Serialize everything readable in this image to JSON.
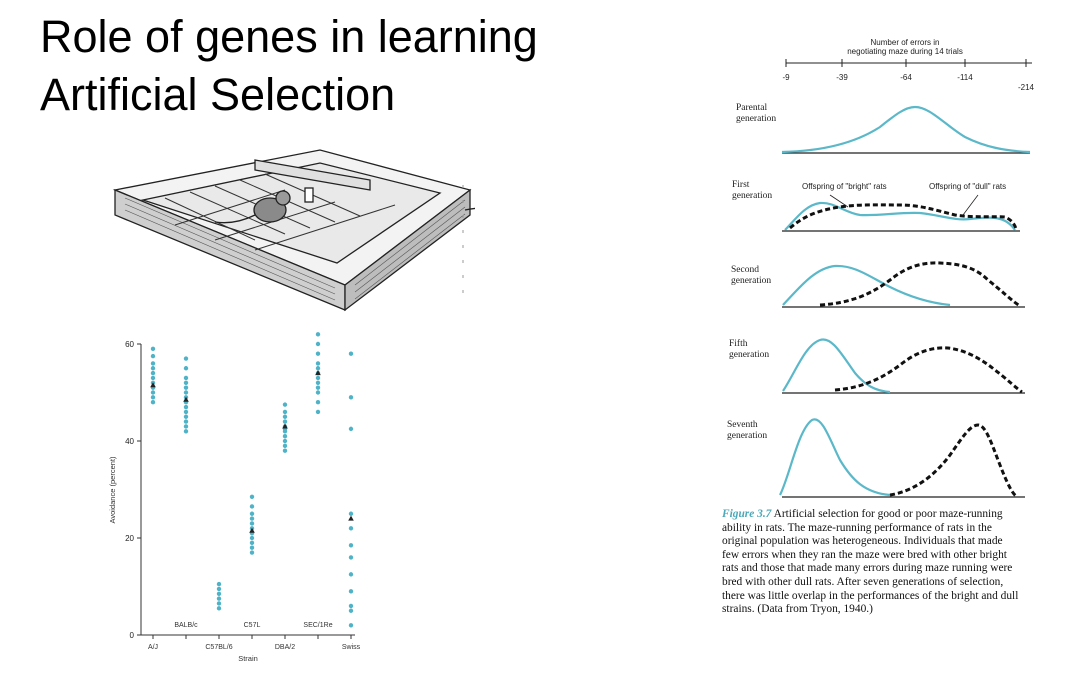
{
  "slide": {
    "title_line1": "Role of genes in learning",
    "title_line2": "Artificial Selection"
  },
  "maze_figure": {
    "axis_title_line1": "Number of errors in",
    "axis_title_line2": "negotiating maze during 14 trials",
    "ticks": [
      "-9",
      "-39",
      "-64",
      "-114",
      "-214"
    ],
    "generations": [
      {
        "label_line1": "Parental",
        "label_line2": "generation"
      },
      {
        "label_line1": "First",
        "label_line2": "generation"
      },
      {
        "label_line1": "Second",
        "label_line2": "generation"
      },
      {
        "label_line1": "Fifth",
        "label_line2": "generation"
      },
      {
        "label_line1": "Seventh",
        "label_line2": "generation"
      }
    ],
    "legend_bright": "Offspring of \"bright\" rats",
    "legend_dull": "Offspring of \"dull\" rats",
    "colors": {
      "bright": "#5bb8c9",
      "dull": "#111111"
    }
  },
  "caption": {
    "label": "Figure 3.7",
    "text": "Artificial selection for good or poor maze-running ability in rats. The maze-running performance of rats in the original population was heterogeneous. Individuals that made few errors when they ran the maze were bred with other bright rats and those that made many errors during maze running were bred with other dull rats. After seven generations of selection, there was little overlap in the performances of the bright and dull strains. (Data from Tryon, 1940.)"
  },
  "chart_data": {
    "type": "scatter",
    "title": "",
    "xlabel": "Strain",
    "ylabel": "Avoidance (percent)",
    "ylim": [
      0,
      60
    ],
    "yticks": [
      0,
      20,
      40,
      60
    ],
    "categories": [
      "A/J",
      "BALB/c",
      "C57BL/6",
      "C57L",
      "DBA/2",
      "SEC/1Re",
      "Swiss"
    ],
    "points": [
      [
        59,
        57.5,
        56,
        55,
        54,
        53,
        52,
        51,
        50,
        49,
        48
      ],
      [
        57,
        55,
        53,
        52,
        51,
        50,
        49,
        48,
        47,
        46,
        45,
        44,
        43,
        42
      ],
      [
        10.5,
        9.5,
        8.5,
        7.5,
        6.5,
        5.5
      ],
      [
        28.5,
        26.5,
        25,
        24,
        23,
        22,
        21,
        20,
        19,
        18,
        17
      ],
      [
        47.5,
        46,
        45,
        44,
        43,
        42.5,
        42,
        41,
        40,
        39,
        38
      ],
      [
        62,
        60,
        58,
        56,
        55,
        54,
        53,
        52,
        51,
        50,
        48,
        46
      ],
      [
        58,
        49,
        42.5,
        25,
        22,
        18.5,
        16,
        12.5,
        9,
        6,
        5,
        2
      ]
    ],
    "means": [
      51.5,
      48.5,
      null,
      21.5,
      43,
      54,
      24
    ],
    "point_color": "#4fb3c8",
    "mean_color": "#222222"
  }
}
